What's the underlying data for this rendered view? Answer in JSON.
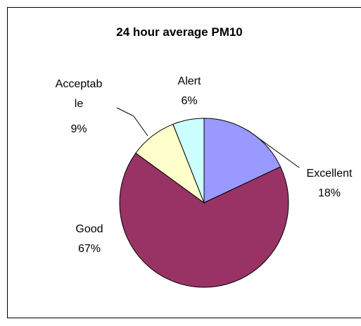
{
  "chart_data": {
    "type": "pie",
    "title": "24 hour average PM10",
    "categories": [
      "Excellent",
      "Good",
      "Acceptable",
      "Alert"
    ],
    "values": [
      18,
      67,
      9,
      6
    ],
    "value_labels": [
      "18%",
      "67%",
      "9%",
      "6%"
    ],
    "colors": [
      "#9999ff",
      "#993366",
      "#ffffcc",
      "#ccffff"
    ]
  }
}
